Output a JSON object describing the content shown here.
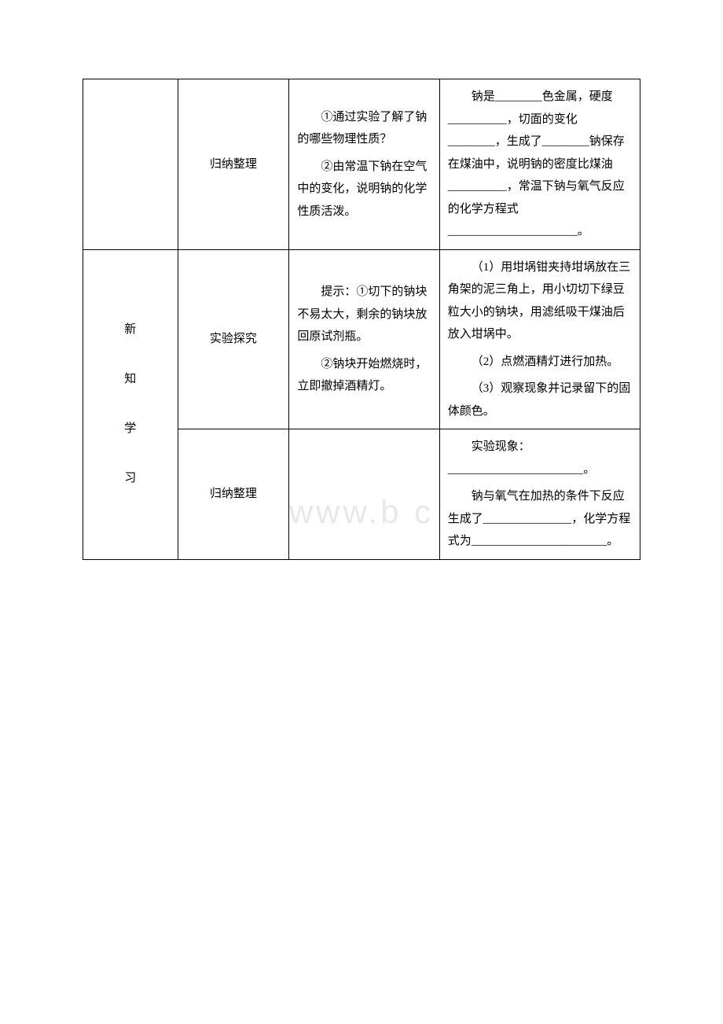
{
  "row1": {
    "col2": "归纳整理",
    "col3_p1": "①通过实验了解了钠的哪些物理性质？",
    "col3_p2": "②由常温下钠在空气中的变化，说明钠的化学性质活泼。",
    "col4": "钠是________色金属，硬度__________，切面的变化________，生成了________钠保存在煤油中，说明钠的密度比煤油__________，常温下钠与氧气反应的化学方程式______________________。"
  },
  "row2": {
    "col1_line1": "新",
    "col1_line2": "知",
    "col1_line3": "学",
    "col1_line4": "习",
    "col2": "实验探究",
    "col3_p1": "提示：①切下的钠块不易太大，剩余的钠块放回原试剂瓶。",
    "col3_p2": "②钠块开始燃烧时，立即撤掉酒精灯。",
    "col4_p1": "（1）用坩埚钳夹持坩埚放在三角架的泥三角上，用小切切下绿豆粒大小的钠块，用滤纸吸干煤油后放入坩埚中。",
    "col4_p2": "（2）点燃酒精灯进行加热。",
    "col4_p3": "（3）观察现象并记录留下的固体颜色。"
  },
  "row3": {
    "col2": "归纳整理",
    "col4_p1": "实验现象：_______________________。",
    "col4_p2": "钠与氧气在加热的条件下反应生成了_______________，化学方程式为_______________________。"
  }
}
